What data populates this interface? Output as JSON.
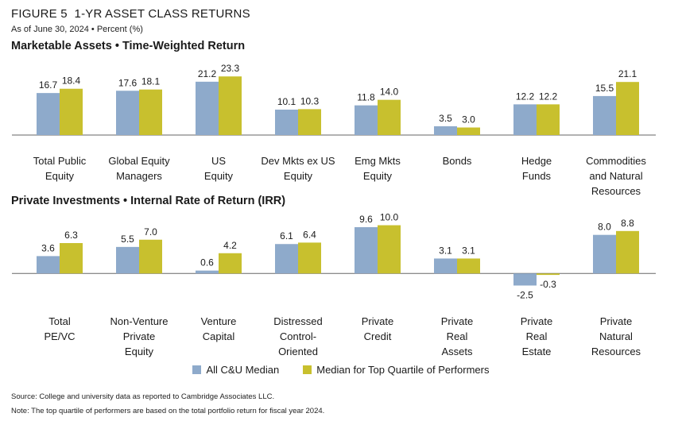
{
  "header": {
    "figure_label": "FIGURE 5",
    "title": "1-YR ASSET CLASS RETURNS",
    "subtitle": "As of June 30, 2024 • Percent (%)"
  },
  "colors": {
    "median": "#8eaacb",
    "top_quartile": "#c8c02e",
    "axis": "#666666"
  },
  "legend": [
    {
      "label": "All C&U Median",
      "color": "#8eaacb"
    },
    {
      "label": "Median for Top Quartile of Performers",
      "color": "#c8c02e"
    }
  ],
  "footnotes": {
    "source": "Source: College and university data as reported to Cambridge Associates LLC.",
    "note": "Note: The top quartile of performers are based on the total portfolio return for fiscal year 2024."
  },
  "chart_data": [
    {
      "type": "bar",
      "title": "Marketable Assets • Time-Weighted Return",
      "categories": [
        [
          "Total Public",
          "Equity"
        ],
        [
          "Global Equity",
          "Managers"
        ],
        [
          "US",
          "Equity"
        ],
        [
          "Dev Mkts ex US",
          "Equity"
        ],
        [
          "Emg Mkts",
          "Equity"
        ],
        [
          "Bonds"
        ],
        [
          "Hedge",
          "Funds"
        ],
        [
          "Commodities",
          "and Natural",
          "Resources"
        ]
      ],
      "series": [
        {
          "name": "All C&U Median",
          "values": [
            16.7,
            17.6,
            21.2,
            10.1,
            11.8,
            3.5,
            12.2,
            15.5
          ]
        },
        {
          "name": "Median for Top Quartile of Performers",
          "values": [
            18.4,
            18.1,
            23.3,
            10.3,
            14.0,
            3.0,
            12.2,
            21.1
          ]
        }
      ],
      "ylim": [
        0,
        24
      ]
    },
    {
      "type": "bar",
      "title": "Private Investments • Internal Rate of Return (IRR)",
      "categories": [
        [
          "Total",
          "PE/VC"
        ],
        [
          "Non-Venture",
          "Private",
          "Equity"
        ],
        [
          "Venture",
          "Capital"
        ],
        [
          "Distressed",
          "Control-",
          "Oriented"
        ],
        [
          "Private",
          "Credit"
        ],
        [
          "Private",
          "Real",
          "Assets"
        ],
        [
          "Private",
          "Real",
          "Estate"
        ],
        [
          "Private",
          "Natural",
          "Resources"
        ]
      ],
      "series": [
        {
          "name": "All C&U Median",
          "values": [
            3.6,
            5.5,
            0.6,
            6.1,
            9.6,
            3.1,
            -2.5,
            8.0
          ]
        },
        {
          "name": "Median for Top Quartile of Performers",
          "values": [
            6.3,
            7.0,
            4.2,
            6.4,
            10.0,
            3.1,
            -0.3,
            8.8
          ]
        }
      ],
      "ylim": [
        -3,
        10.5
      ]
    }
  ]
}
